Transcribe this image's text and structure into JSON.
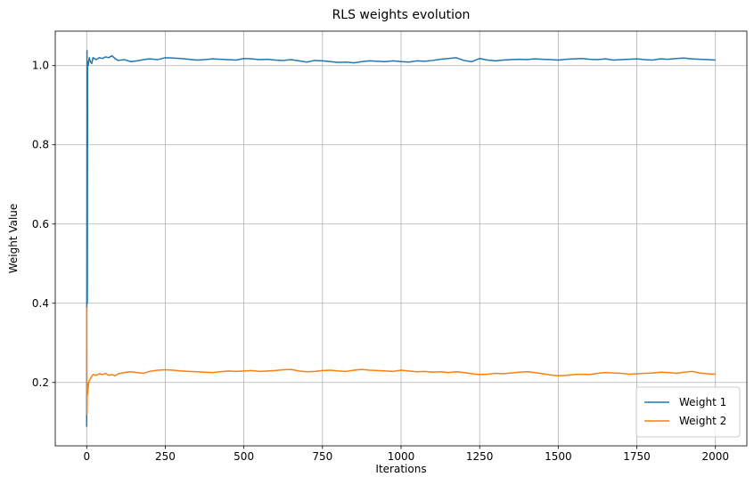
{
  "chart_data": {
    "type": "line",
    "title": "RLS weights evolution",
    "xlabel": "Iterations",
    "ylabel": "Weight Value",
    "xlim": [
      -100,
      2100
    ],
    "ylim": [
      0.04,
      1.087
    ],
    "xticks": [
      0,
      250,
      500,
      750,
      1000,
      1250,
      1500,
      1750,
      2000
    ],
    "xtick_labels": [
      "0",
      "250",
      "500",
      "750",
      "1000",
      "1250",
      "1500",
      "1750",
      "2000"
    ],
    "yticks": [
      0.2,
      0.4,
      0.6,
      0.8,
      1.0
    ],
    "ytick_labels": [
      "0.2",
      "0.4",
      "0.6",
      "0.8",
      "1.0"
    ],
    "grid": true,
    "legend_position": "bottom-right",
    "series": [
      {
        "name": "Weight 1",
        "color": "#1f77b4",
        "points": [
          [
            0,
            0.088
          ],
          [
            1,
            1.038
          ],
          [
            2,
            0.4
          ],
          [
            3,
            1.01
          ],
          [
            5,
            1.0
          ],
          [
            8,
            1.02
          ],
          [
            12,
            1.01
          ],
          [
            16,
            1.005
          ],
          [
            20,
            1.02
          ],
          [
            30,
            1.015
          ],
          [
            40,
            1.02
          ],
          [
            50,
            1.018
          ],
          [
            60,
            1.022
          ],
          [
            70,
            1.02
          ],
          [
            80,
            1.025
          ],
          [
            90,
            1.018
          ],
          [
            100,
            1.013
          ],
          [
            120,
            1.015
          ],
          [
            140,
            1.01
          ],
          [
            160,
            1.012
          ],
          [
            180,
            1.015
          ],
          [
            200,
            1.017
          ],
          [
            225,
            1.015
          ],
          [
            250,
            1.02
          ],
          [
            275,
            1.019
          ],
          [
            300,
            1.018
          ],
          [
            325,
            1.016
          ],
          [
            350,
            1.014
          ],
          [
            375,
            1.015
          ],
          [
            400,
            1.017
          ],
          [
            425,
            1.016
          ],
          [
            450,
            1.015
          ],
          [
            475,
            1.014
          ],
          [
            500,
            1.018
          ],
          [
            525,
            1.017
          ],
          [
            550,
            1.015
          ],
          [
            575,
            1.016
          ],
          [
            600,
            1.014
          ],
          [
            625,
            1.013
          ],
          [
            650,
            1.015
          ],
          [
            675,
            1.012
          ],
          [
            700,
            1.009
          ],
          [
            725,
            1.013
          ],
          [
            750,
            1.012
          ],
          [
            775,
            1.01
          ],
          [
            800,
            1.008
          ],
          [
            825,
            1.009
          ],
          [
            850,
            1.007
          ],
          [
            875,
            1.01
          ],
          [
            900,
            1.012
          ],
          [
            925,
            1.011
          ],
          [
            950,
            1.01
          ],
          [
            975,
            1.012
          ],
          [
            1000,
            1.01
          ],
          [
            1025,
            1.009
          ],
          [
            1050,
            1.012
          ],
          [
            1075,
            1.011
          ],
          [
            1100,
            1.013
          ],
          [
            1125,
            1.016
          ],
          [
            1150,
            1.018
          ],
          [
            1175,
            1.02
          ],
          [
            1200,
            1.013
          ],
          [
            1225,
            1.01
          ],
          [
            1250,
            1.018
          ],
          [
            1275,
            1.014
          ],
          [
            1300,
            1.012
          ],
          [
            1325,
            1.014
          ],
          [
            1350,
            1.015
          ],
          [
            1375,
            1.016
          ],
          [
            1400,
            1.015
          ],
          [
            1425,
            1.017
          ],
          [
            1450,
            1.016
          ],
          [
            1475,
            1.015
          ],
          [
            1500,
            1.014
          ],
          [
            1525,
            1.016
          ],
          [
            1550,
            1.017
          ],
          [
            1575,
            1.018
          ],
          [
            1600,
            1.016
          ],
          [
            1625,
            1.015
          ],
          [
            1650,
            1.017
          ],
          [
            1675,
            1.014
          ],
          [
            1700,
            1.015
          ],
          [
            1725,
            1.016
          ],
          [
            1750,
            1.017
          ],
          [
            1775,
            1.015
          ],
          [
            1800,
            1.014
          ],
          [
            1825,
            1.017
          ],
          [
            1850,
            1.016
          ],
          [
            1875,
            1.018
          ],
          [
            1900,
            1.019
          ],
          [
            1925,
            1.017
          ],
          [
            1950,
            1.016
          ],
          [
            1975,
            1.015
          ],
          [
            2000,
            1.014
          ]
        ]
      },
      {
        "name": "Weight 2",
        "color": "#ff7f0e",
        "points": [
          [
            0,
            0.39
          ],
          [
            1,
            0.12
          ],
          [
            2,
            0.2
          ],
          [
            3,
            0.17
          ],
          [
            5,
            0.19
          ],
          [
            8,
            0.205
          ],
          [
            12,
            0.21
          ],
          [
            16,
            0.215
          ],
          [
            20,
            0.22
          ],
          [
            30,
            0.218
          ],
          [
            40,
            0.222
          ],
          [
            50,
            0.22
          ],
          [
            60,
            0.223
          ],
          [
            70,
            0.218
          ],
          [
            80,
            0.22
          ],
          [
            90,
            0.217
          ],
          [
            100,
            0.222
          ],
          [
            120,
            0.225
          ],
          [
            140,
            0.227
          ],
          [
            160,
            0.225
          ],
          [
            180,
            0.223
          ],
          [
            200,
            0.228
          ],
          [
            225,
            0.231
          ],
          [
            250,
            0.232
          ],
          [
            275,
            0.231
          ],
          [
            300,
            0.229
          ],
          [
            325,
            0.228
          ],
          [
            350,
            0.227
          ],
          [
            375,
            0.226
          ],
          [
            400,
            0.225
          ],
          [
            425,
            0.227
          ],
          [
            450,
            0.229
          ],
          [
            475,
            0.228
          ],
          [
            500,
            0.229
          ],
          [
            525,
            0.23
          ],
          [
            550,
            0.228
          ],
          [
            575,
            0.229
          ],
          [
            600,
            0.23
          ],
          [
            625,
            0.232
          ],
          [
            650,
            0.233
          ],
          [
            675,
            0.229
          ],
          [
            700,
            0.227
          ],
          [
            725,
            0.228
          ],
          [
            750,
            0.23
          ],
          [
            775,
            0.231
          ],
          [
            800,
            0.229
          ],
          [
            825,
            0.228
          ],
          [
            850,
            0.231
          ],
          [
            875,
            0.233
          ],
          [
            900,
            0.231
          ],
          [
            925,
            0.23
          ],
          [
            950,
            0.229
          ],
          [
            975,
            0.228
          ],
          [
            1000,
            0.231
          ],
          [
            1025,
            0.229
          ],
          [
            1050,
            0.227
          ],
          [
            1075,
            0.228
          ],
          [
            1100,
            0.226
          ],
          [
            1125,
            0.227
          ],
          [
            1150,
            0.225
          ],
          [
            1175,
            0.227
          ],
          [
            1200,
            0.225
          ],
          [
            1225,
            0.222
          ],
          [
            1250,
            0.22
          ],
          [
            1275,
            0.221
          ],
          [
            1300,
            0.223
          ],
          [
            1325,
            0.222
          ],
          [
            1350,
            0.224
          ],
          [
            1375,
            0.226
          ],
          [
            1400,
            0.227
          ],
          [
            1425,
            0.225
          ],
          [
            1450,
            0.222
          ],
          [
            1475,
            0.219
          ],
          [
            1500,
            0.217
          ],
          [
            1525,
            0.218
          ],
          [
            1550,
            0.22
          ],
          [
            1575,
            0.221
          ],
          [
            1600,
            0.22
          ],
          [
            1625,
            0.223
          ],
          [
            1650,
            0.225
          ],
          [
            1675,
            0.224
          ],
          [
            1700,
            0.223
          ],
          [
            1725,
            0.221
          ],
          [
            1750,
            0.222
          ],
          [
            1775,
            0.223
          ],
          [
            1800,
            0.224
          ],
          [
            1825,
            0.226
          ],
          [
            1850,
            0.225
          ],
          [
            1875,
            0.223
          ],
          [
            1900,
            0.226
          ],
          [
            1925,
            0.228
          ],
          [
            1950,
            0.224
          ],
          [
            1975,
            0.222
          ],
          [
            2000,
            0.221
          ]
        ]
      }
    ]
  }
}
